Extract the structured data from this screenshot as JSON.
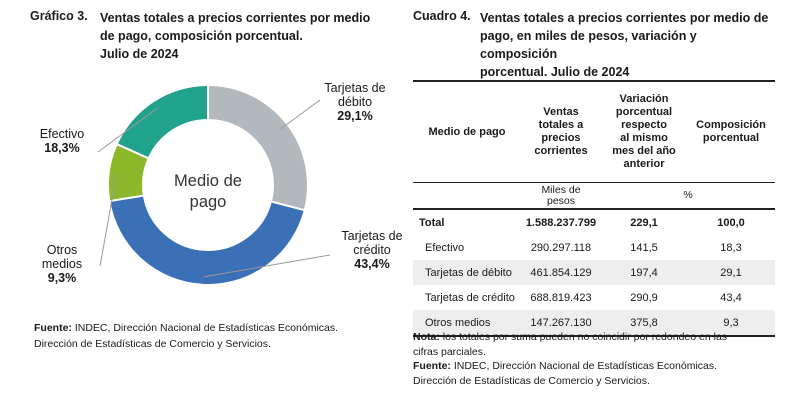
{
  "figure": {
    "label": "Gráfico 3.",
    "title_lines": [
      "Ventas totales a precios corrientes por medio",
      "de pago, composición porcentual.",
      "Julio de 2024"
    ],
    "source_label": "Fuente:",
    "source_lines": [
      "INDEC, Dirección Nacional de Estadísticas Económicas.",
      "Dirección de Estadísticas de Comercio y Servicios."
    ]
  },
  "chart_data": {
    "type": "pie",
    "variant": "donut",
    "center_label": [
      "Medio de",
      "pago"
    ],
    "slices": [
      {
        "name_lines": [
          "Tarjetas de",
          "débito"
        ],
        "value": 29.1,
        "pct_label": "29,1%",
        "color": "#b3b8bd"
      },
      {
        "name_lines": [
          "Tarjetas de",
          "crédito"
        ],
        "value": 43.4,
        "pct_label": "43,4%",
        "color": "#3b6fb6"
      },
      {
        "name_lines": [
          "Otros",
          "medios"
        ],
        "value": 9.3,
        "pct_label": "9,3%",
        "color": "#8cb82b"
      },
      {
        "name_lines": [
          "Efectivo"
        ],
        "value": 18.3,
        "pct_label": "18,3%",
        "color": "#20a28d"
      }
    ]
  },
  "table": {
    "label": "Cuadro 4.",
    "title_lines": [
      "Ventas totales a precios corrientes por medio de",
      "pago, en miles de pesos, variación y composición",
      "porcentual. Julio de 2024"
    ],
    "headers": {
      "c1": "Medio de pago",
      "c2": [
        "Ventas",
        "totales a",
        "precios",
        "corrientes"
      ],
      "c3": [
        "Variación",
        "porcentual",
        "respecto",
        "al mismo",
        "mes del año",
        "anterior"
      ],
      "c4": [
        "Composición",
        "porcentual"
      ]
    },
    "units": {
      "c2": [
        "Miles de",
        "pesos"
      ],
      "c34": "%"
    },
    "rows": [
      {
        "label": "Total",
        "ventas": "1.588.237.799",
        "variacion": "229,1",
        "composicion": "100,0"
      },
      {
        "label": "Efectivo",
        "ventas": "290.297.118",
        "variacion": "141,5",
        "composicion": "18,3"
      },
      {
        "label": "Tarjetas de débito",
        "ventas": "461.854.129",
        "variacion": "197,4",
        "composicion": "29,1"
      },
      {
        "label": "Tarjetas de crédito",
        "ventas": "688.819.423",
        "variacion": "290,9",
        "composicion": "43,4"
      },
      {
        "label": "Otros medios",
        "ventas": "147.267.130",
        "variacion": "375,8",
        "composicion": "9,3"
      }
    ],
    "note_label": "Nota:",
    "note_lines": [
      "los totales por suma pueden no coincidir por redondeo en las",
      "cifras parciales."
    ],
    "source_label": "Fuente:",
    "source_lines": [
      "INDEC, Dirección Nacional de Estadísticas Económicas.",
      "Dirección de Estadísticas de Comercio y Servicios."
    ]
  }
}
